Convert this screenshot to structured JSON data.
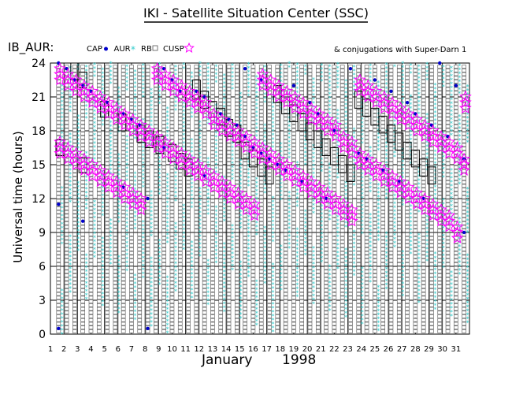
{
  "chart_data": {
    "type": "scatter",
    "title": "IKI - Satellite Situation Center (SSC)",
    "subtitle": "IB_AUR:",
    "note": "& conjugations with Super-Darn 1",
    "ylabel": "Universal time (hours)",
    "xlabel_month": "January",
    "xlabel_year": "1998",
    "xlim": [
      1,
      32
    ],
    "ylim": [
      0,
      24
    ],
    "y_ticks": [
      "0",
      "3",
      "6",
      "9",
      "12",
      "15",
      "18",
      "21",
      "24"
    ],
    "x_ticks": [
      "1",
      "2",
      "3",
      "4",
      "5",
      "6",
      "7",
      "8",
      "9",
      "10",
      "11",
      "12",
      "13",
      "14",
      "15",
      "16",
      "17",
      "18",
      "19",
      "20",
      "21",
      "22",
      "23",
      "24",
      "25",
      "26",
      "27",
      "28",
      "29",
      "30",
      "31"
    ],
    "grid": true,
    "legend": [
      {
        "label": "CAP",
        "marker": "dot",
        "color": "#0000cc"
      },
      {
        "label": "AUR",
        "marker": "star",
        "color": "#33cccc"
      },
      {
        "label": "RB",
        "marker": "square",
        "color": "#555555"
      },
      {
        "label": "CUSP",
        "marker": "star-outline",
        "color": "#ff00ff"
      }
    ],
    "orbits_x": [
      1.6,
      2.2,
      2.8,
      3.4,
      4.0,
      4.6,
      5.2,
      5.8,
      6.4,
      7.0,
      7.6,
      8.2,
      8.8,
      9.4,
      10.0,
      10.6,
      11.2,
      11.8,
      12.4,
      13.0,
      13.6,
      14.2,
      14.8,
      15.4,
      16.0,
      16.6,
      17.2,
      17.8,
      18.4,
      19.0,
      19.6,
      20.2,
      20.8,
      21.4,
      22.0,
      22.6,
      23.2,
      23.8,
      24.4,
      25.0,
      25.6,
      26.2,
      26.8,
      27.4,
      28.0,
      28.6,
      29.2,
      29.8,
      30.4,
      31.0,
      31.6
    ],
    "cusp_points": [
      [
        1.7,
        23.0
      ],
      [
        2.3,
        22.5
      ],
      [
        2.9,
        22.0
      ],
      [
        3.5,
        21.5
      ],
      [
        4.1,
        21.0
      ],
      [
        4.7,
        20.5
      ],
      [
        5.3,
        20.0
      ],
      [
        5.9,
        19.5
      ],
      [
        6.5,
        19.0
      ],
      [
        7.1,
        18.5
      ],
      [
        7.7,
        18.0
      ],
      [
        8.3,
        17.5
      ],
      [
        8.9,
        17.0
      ],
      [
        9.5,
        16.5
      ],
      [
        10.1,
        16.0
      ],
      [
        10.7,
        15.5
      ],
      [
        11.3,
        15.0
      ],
      [
        11.9,
        14.5
      ],
      [
        12.5,
        14.0
      ],
      [
        13.1,
        13.5
      ],
      [
        13.7,
        13.0
      ],
      [
        14.3,
        12.5
      ],
      [
        14.9,
        12.0
      ],
      [
        15.5,
        11.5
      ],
      [
        16.1,
        11.0
      ],
      [
        16.7,
        22.5
      ],
      [
        17.3,
        22.0
      ],
      [
        17.9,
        21.5
      ],
      [
        18.5,
        21.0
      ],
      [
        19.1,
        20.5
      ],
      [
        19.7,
        20.0
      ],
      [
        20.3,
        19.5
      ],
      [
        20.9,
        19.0
      ],
      [
        21.5,
        18.5
      ],
      [
        22.1,
        18.0
      ],
      [
        22.7,
        17.0
      ],
      [
        23.3,
        16.5
      ],
      [
        23.9,
        22.0
      ],
      [
        24.5,
        21.5
      ],
      [
        25.1,
        21.0
      ],
      [
        25.7,
        20.5
      ],
      [
        26.3,
        20.0
      ],
      [
        26.9,
        19.5
      ],
      [
        27.5,
        19.0
      ],
      [
        28.1,
        18.5
      ],
      [
        28.7,
        18.0
      ],
      [
        29.3,
        17.5
      ],
      [
        29.9,
        17.0
      ],
      [
        30.5,
        16.5
      ],
      [
        31.1,
        16.0
      ],
      [
        31.6,
        15.0
      ],
      [
        1.7,
        16.5
      ],
      [
        2.3,
        16.0
      ],
      [
        2.9,
        15.5
      ],
      [
        3.5,
        15.0
      ],
      [
        4.1,
        14.5
      ],
      [
        4.7,
        14.0
      ],
      [
        5.3,
        13.5
      ],
      [
        5.9,
        13.0
      ],
      [
        6.5,
        12.5
      ],
      [
        7.1,
        12.0
      ],
      [
        7.7,
        11.5
      ],
      [
        8.9,
        23.0
      ],
      [
        9.5,
        22.5
      ],
      [
        10.1,
        22.0
      ],
      [
        10.7,
        21.5
      ],
      [
        11.3,
        21.0
      ],
      [
        11.9,
        20.5
      ],
      [
        12.5,
        20.0
      ],
      [
        13.1,
        19.0
      ],
      [
        13.7,
        18.5
      ],
      [
        14.3,
        18.0
      ],
      [
        14.9,
        17.5
      ],
      [
        15.5,
        17.0
      ],
      [
        16.1,
        16.5
      ],
      [
        16.7,
        16.0
      ],
      [
        17.3,
        15.5
      ],
      [
        17.9,
        15.0
      ],
      [
        18.5,
        14.5
      ],
      [
        19.1,
        14.0
      ],
      [
        19.7,
        13.5
      ],
      [
        20.3,
        13.0
      ],
      [
        20.9,
        12.5
      ],
      [
        21.5,
        12.0
      ],
      [
        22.1,
        11.5
      ],
      [
        22.7,
        11.0
      ],
      [
        23.3,
        10.5
      ],
      [
        23.9,
        15.5
      ],
      [
        24.5,
        15.0
      ],
      [
        25.1,
        14.5
      ],
      [
        25.7,
        14.0
      ],
      [
        26.3,
        13.5
      ],
      [
        26.9,
        13.0
      ],
      [
        27.5,
        12.5
      ],
      [
        28.1,
        12.0
      ],
      [
        28.7,
        11.5
      ],
      [
        29.3,
        11.0
      ],
      [
        29.9,
        10.5
      ],
      [
        30.5,
        10.0
      ],
      [
        31.1,
        9.0
      ],
      [
        31.7,
        20.5
      ]
    ],
    "cap_points": [
      [
        1.6,
        24.0
      ],
      [
        1.6,
        11.5
      ],
      [
        1.6,
        0.5
      ],
      [
        2.2,
        23.5
      ],
      [
        2.8,
        22.5
      ],
      [
        3.4,
        22.0
      ],
      [
        3.4,
        10.0
      ],
      [
        4.0,
        21.5
      ],
      [
        5.2,
        20.5
      ],
      [
        6.4,
        19.5
      ],
      [
        6.4,
        13.0
      ],
      [
        7.0,
        19.0
      ],
      [
        7.6,
        18.5
      ],
      [
        8.2,
        12.0
      ],
      [
        8.2,
        0.5
      ],
      [
        9.4,
        23.5
      ],
      [
        9.4,
        16.5
      ],
      [
        10.0,
        22.5
      ],
      [
        10.6,
        21.5
      ],
      [
        11.8,
        21.5
      ],
      [
        12.4,
        21.0
      ],
      [
        12.4,
        14.0
      ],
      [
        13.6,
        19.5
      ],
      [
        14.2,
        19.0
      ],
      [
        14.8,
        18.5
      ],
      [
        15.4,
        17.5
      ],
      [
        15.4,
        23.5
      ],
      [
        16.0,
        16.5
      ],
      [
        16.6,
        16.0
      ],
      [
        16.6,
        22.5
      ],
      [
        17.2,
        15.5
      ],
      [
        17.8,
        15.0
      ],
      [
        18.4,
        14.5
      ],
      [
        19.0,
        22.0
      ],
      [
        19.6,
        13.5
      ],
      [
        20.2,
        20.5
      ],
      [
        20.8,
        19.5
      ],
      [
        21.4,
        12.0
      ],
      [
        22.0,
        18.0
      ],
      [
        23.2,
        23.5
      ],
      [
        23.8,
        16.0
      ],
      [
        24.4,
        15.5
      ],
      [
        25.0,
        22.5
      ],
      [
        25.6,
        14.5
      ],
      [
        26.2,
        21.5
      ],
      [
        26.8,
        13.5
      ],
      [
        27.4,
        20.5
      ],
      [
        28.0,
        19.5
      ],
      [
        28.6,
        12.0
      ],
      [
        29.2,
        18.5
      ],
      [
        29.8,
        24.0
      ],
      [
        30.4,
        17.5
      ],
      [
        31.0,
        22.0
      ],
      [
        31.6,
        9.0
      ],
      [
        31.6,
        15.5
      ]
    ],
    "boxes": [
      [
        1.7,
        15.8,
        17.2
      ],
      [
        2.8,
        22.5,
        24.0
      ],
      [
        3.4,
        21.8,
        23.2
      ],
      [
        3.4,
        14.3,
        15.6
      ],
      [
        5.0,
        19.2,
        20.6
      ],
      [
        6.3,
        18.0,
        19.5
      ],
      [
        7.7,
        17.0,
        18.5
      ],
      [
        8.3,
        16.5,
        18.0
      ],
      [
        9.1,
        16.0,
        17.5
      ],
      [
        10.0,
        15.3,
        16.8
      ],
      [
        10.6,
        14.6,
        16.0
      ],
      [
        11.2,
        14.0,
        15.5
      ],
      [
        11.8,
        20.8,
        22.5
      ],
      [
        12.4,
        20.0,
        21.5
      ],
      [
        13.0,
        19.2,
        20.6
      ],
      [
        13.6,
        18.5,
        20.0
      ],
      [
        14.2,
        17.5,
        19.0
      ],
      [
        14.8,
        17.0,
        18.5
      ],
      [
        15.4,
        15.5,
        17.0
      ],
      [
        16.0,
        14.8,
        16.3
      ],
      [
        16.6,
        14.0,
        15.5
      ],
      [
        17.2,
        13.3,
        14.8
      ],
      [
        17.8,
        20.5,
        22.0
      ],
      [
        18.4,
        19.5,
        21.0
      ],
      [
        19.0,
        18.8,
        20.3
      ],
      [
        19.6,
        18.0,
        19.5
      ],
      [
        20.2,
        17.2,
        18.7
      ],
      [
        20.8,
        16.5,
        18.0
      ],
      [
        21.4,
        15.8,
        17.3
      ],
      [
        22.0,
        15.0,
        16.5
      ],
      [
        22.6,
        14.3,
        15.8
      ],
      [
        23.2,
        13.5,
        15.0
      ],
      [
        23.8,
        20.0,
        21.5
      ],
      [
        24.4,
        19.3,
        20.8
      ],
      [
        25.0,
        18.5,
        20.0
      ],
      [
        25.6,
        17.8,
        19.3
      ],
      [
        26.2,
        17.0,
        18.5
      ],
      [
        26.8,
        16.3,
        17.8
      ],
      [
        27.4,
        15.5,
        17.0
      ],
      [
        28.0,
        14.8,
        16.3
      ],
      [
        28.6,
        14.0,
        15.5
      ],
      [
        29.2,
        13.3,
        14.8
      ]
    ]
  }
}
